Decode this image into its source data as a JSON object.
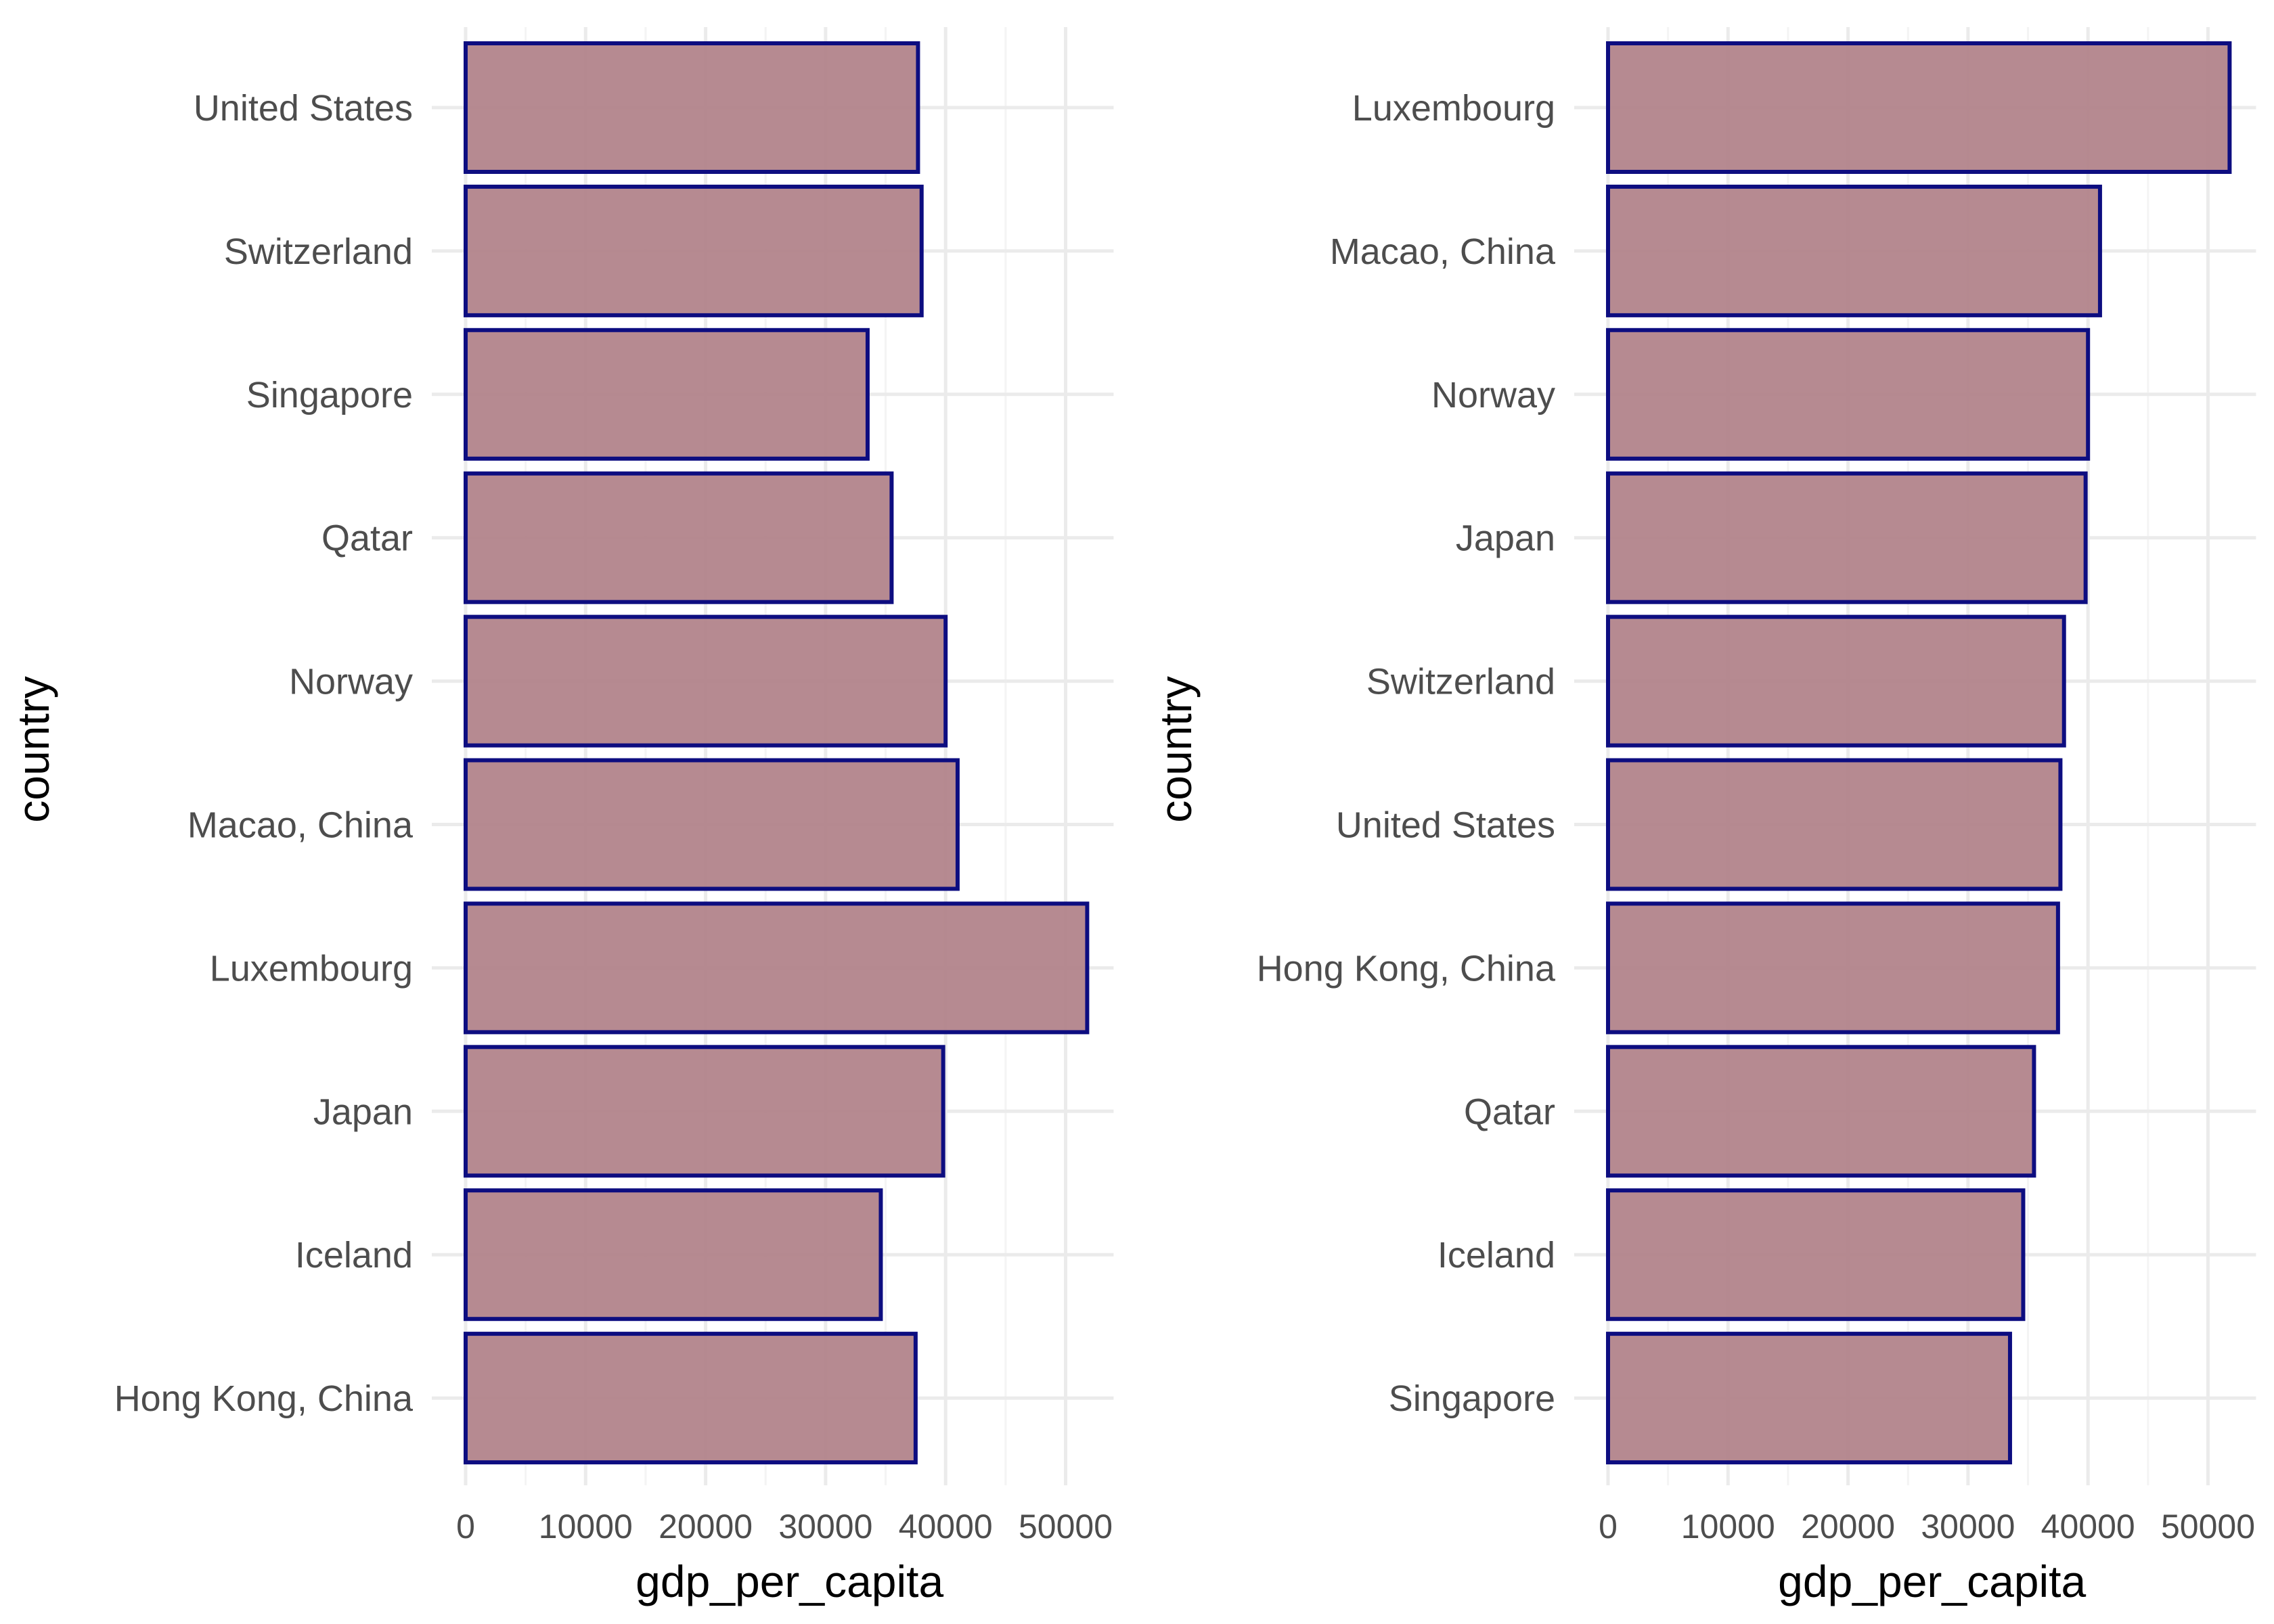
{
  "chart_data": [
    {
      "type": "bar",
      "orientation": "horizontal",
      "categories": [
        "United States",
        "Switzerland",
        "Singapore",
        "Qatar",
        "Norway",
        "Macao, China",
        "Luxembourg",
        "Japan",
        "Iceland",
        "Hong Kong, China"
      ],
      "values": [
        37700,
        38000,
        33500,
        35500,
        40000,
        41000,
        51800,
        39800,
        34600,
        37500
      ],
      "xlabel": "gdp_per_capita",
      "ylabel": "country",
      "xlim": [
        0,
        54000
      ],
      "x_ticks": [
        0,
        10000,
        20000,
        30000,
        40000,
        50000
      ],
      "grid": true,
      "legend": "none"
    },
    {
      "type": "bar",
      "orientation": "horizontal",
      "categories": [
        "Luxembourg",
        "Macao, China",
        "Norway",
        "Japan",
        "Switzerland",
        "United States",
        "Hong Kong, China",
        "Qatar",
        "Iceland",
        "Singapore"
      ],
      "values": [
        51800,
        41000,
        40000,
        39800,
        38000,
        37700,
        37500,
        35500,
        34600,
        33500
      ],
      "xlabel": "gdp_per_capita",
      "ylabel": "country",
      "xlim": [
        0,
        54000
      ],
      "x_ticks": [
        0,
        10000,
        20000,
        30000,
        40000,
        50000
      ],
      "grid": true,
      "legend": "none"
    }
  ],
  "colors": {
    "bar_fill": "#b08088",
    "bar_stroke": "#0d0d80",
    "grid_major": "#ebebeb",
    "grid_minor": "#f4f4f4"
  }
}
